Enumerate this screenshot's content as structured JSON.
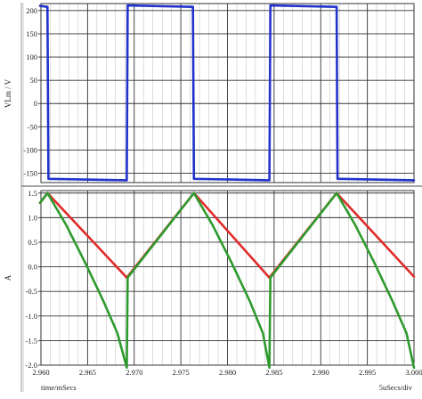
{
  "chart_data": [
    {
      "type": "line",
      "panel": "top",
      "ylabel": "VLm / V",
      "ylim": [
        -170,
        215
      ],
      "xlim": [
        2.96,
        3.0
      ],
      "yticks": [
        "200",
        "150",
        "100",
        "50",
        "0",
        "-50",
        "-100",
        "-150"
      ],
      "ytick_values": [
        200,
        150,
        100,
        50,
        0,
        -50,
        -100,
        -150
      ],
      "grid": true,
      "series": [
        {
          "color": "#2233cc",
          "points": [
            [
              2.9599,
              210
            ],
            [
              2.9607,
              208
            ],
            [
              2.9608,
              -162
            ],
            [
              2.9692,
              -165
            ],
            [
              2.9693,
              211
            ],
            [
              2.9763,
              208
            ],
            [
              2.9764,
              -162
            ],
            [
              2.9845,
              -165
            ],
            [
              2.9846,
              211
            ],
            [
              2.9917,
              208
            ],
            [
              2.9918,
              -162
            ],
            [
              3.0,
              -165
            ]
          ]
        }
      ]
    },
    {
      "type": "line",
      "panel": "bottom",
      "ylabel": "A",
      "xlabel": "time/mSecs",
      "xscale_label": "5uSecs/div",
      "ylim": [
        -2.0,
        1.55
      ],
      "xlim": [
        2.96,
        3.0
      ],
      "yticks": [
        "1.5",
        "1.0",
        "0.5",
        "0.0",
        "-0.5",
        "-1.0",
        "-1.5",
        "-2.0"
      ],
      "ytick_values": [
        1.5,
        1.0,
        0.5,
        0.0,
        -0.5,
        -1.0,
        -1.5,
        -2.0
      ],
      "xticks": [
        "2.960",
        "2.965",
        "2.970",
        "2.975",
        "2.980",
        "2.985",
        "2.990",
        "2.995",
        "3.000"
      ],
      "xtick_values": [
        2.96,
        2.965,
        2.97,
        2.975,
        2.98,
        2.985,
        2.99,
        2.995,
        3.0
      ],
      "grid": true,
      "series": [
        {
          "color": "#e02b2b",
          "points": [
            [
              2.9599,
              1.3
            ],
            [
              2.9607,
              1.5
            ],
            [
              2.9692,
              -0.22
            ],
            [
              2.9764,
              1.5
            ],
            [
              2.9845,
              -0.22
            ],
            [
              2.9917,
              1.5
            ],
            [
              3.0,
              -0.2
            ]
          ]
        },
        {
          "color": "#2e9a2e",
          "points": [
            [
              2.9599,
              1.3
            ],
            [
              2.9607,
              1.5
            ],
            [
              2.9627,
              0.85
            ],
            [
              2.9647,
              0.1
            ],
            [
              2.9667,
              -0.7
            ],
            [
              2.9682,
              -1.35
            ],
            [
              2.9692,
              -2.05
            ],
            [
              2.9693,
              -0.22
            ],
            [
              2.9764,
              1.5
            ],
            [
              2.9784,
              0.85
            ],
            [
              2.9804,
              0.1
            ],
            [
              2.9824,
              -0.7
            ],
            [
              2.9838,
              -1.35
            ],
            [
              2.9845,
              -2.05
            ],
            [
              2.9846,
              -0.22
            ],
            [
              2.9917,
              1.5
            ],
            [
              2.9937,
              0.85
            ],
            [
              2.9957,
              0.1
            ],
            [
              2.9977,
              -0.7
            ],
            [
              2.9992,
              -1.35
            ],
            [
              3.0,
              -2.05
            ]
          ]
        }
      ]
    }
  ]
}
